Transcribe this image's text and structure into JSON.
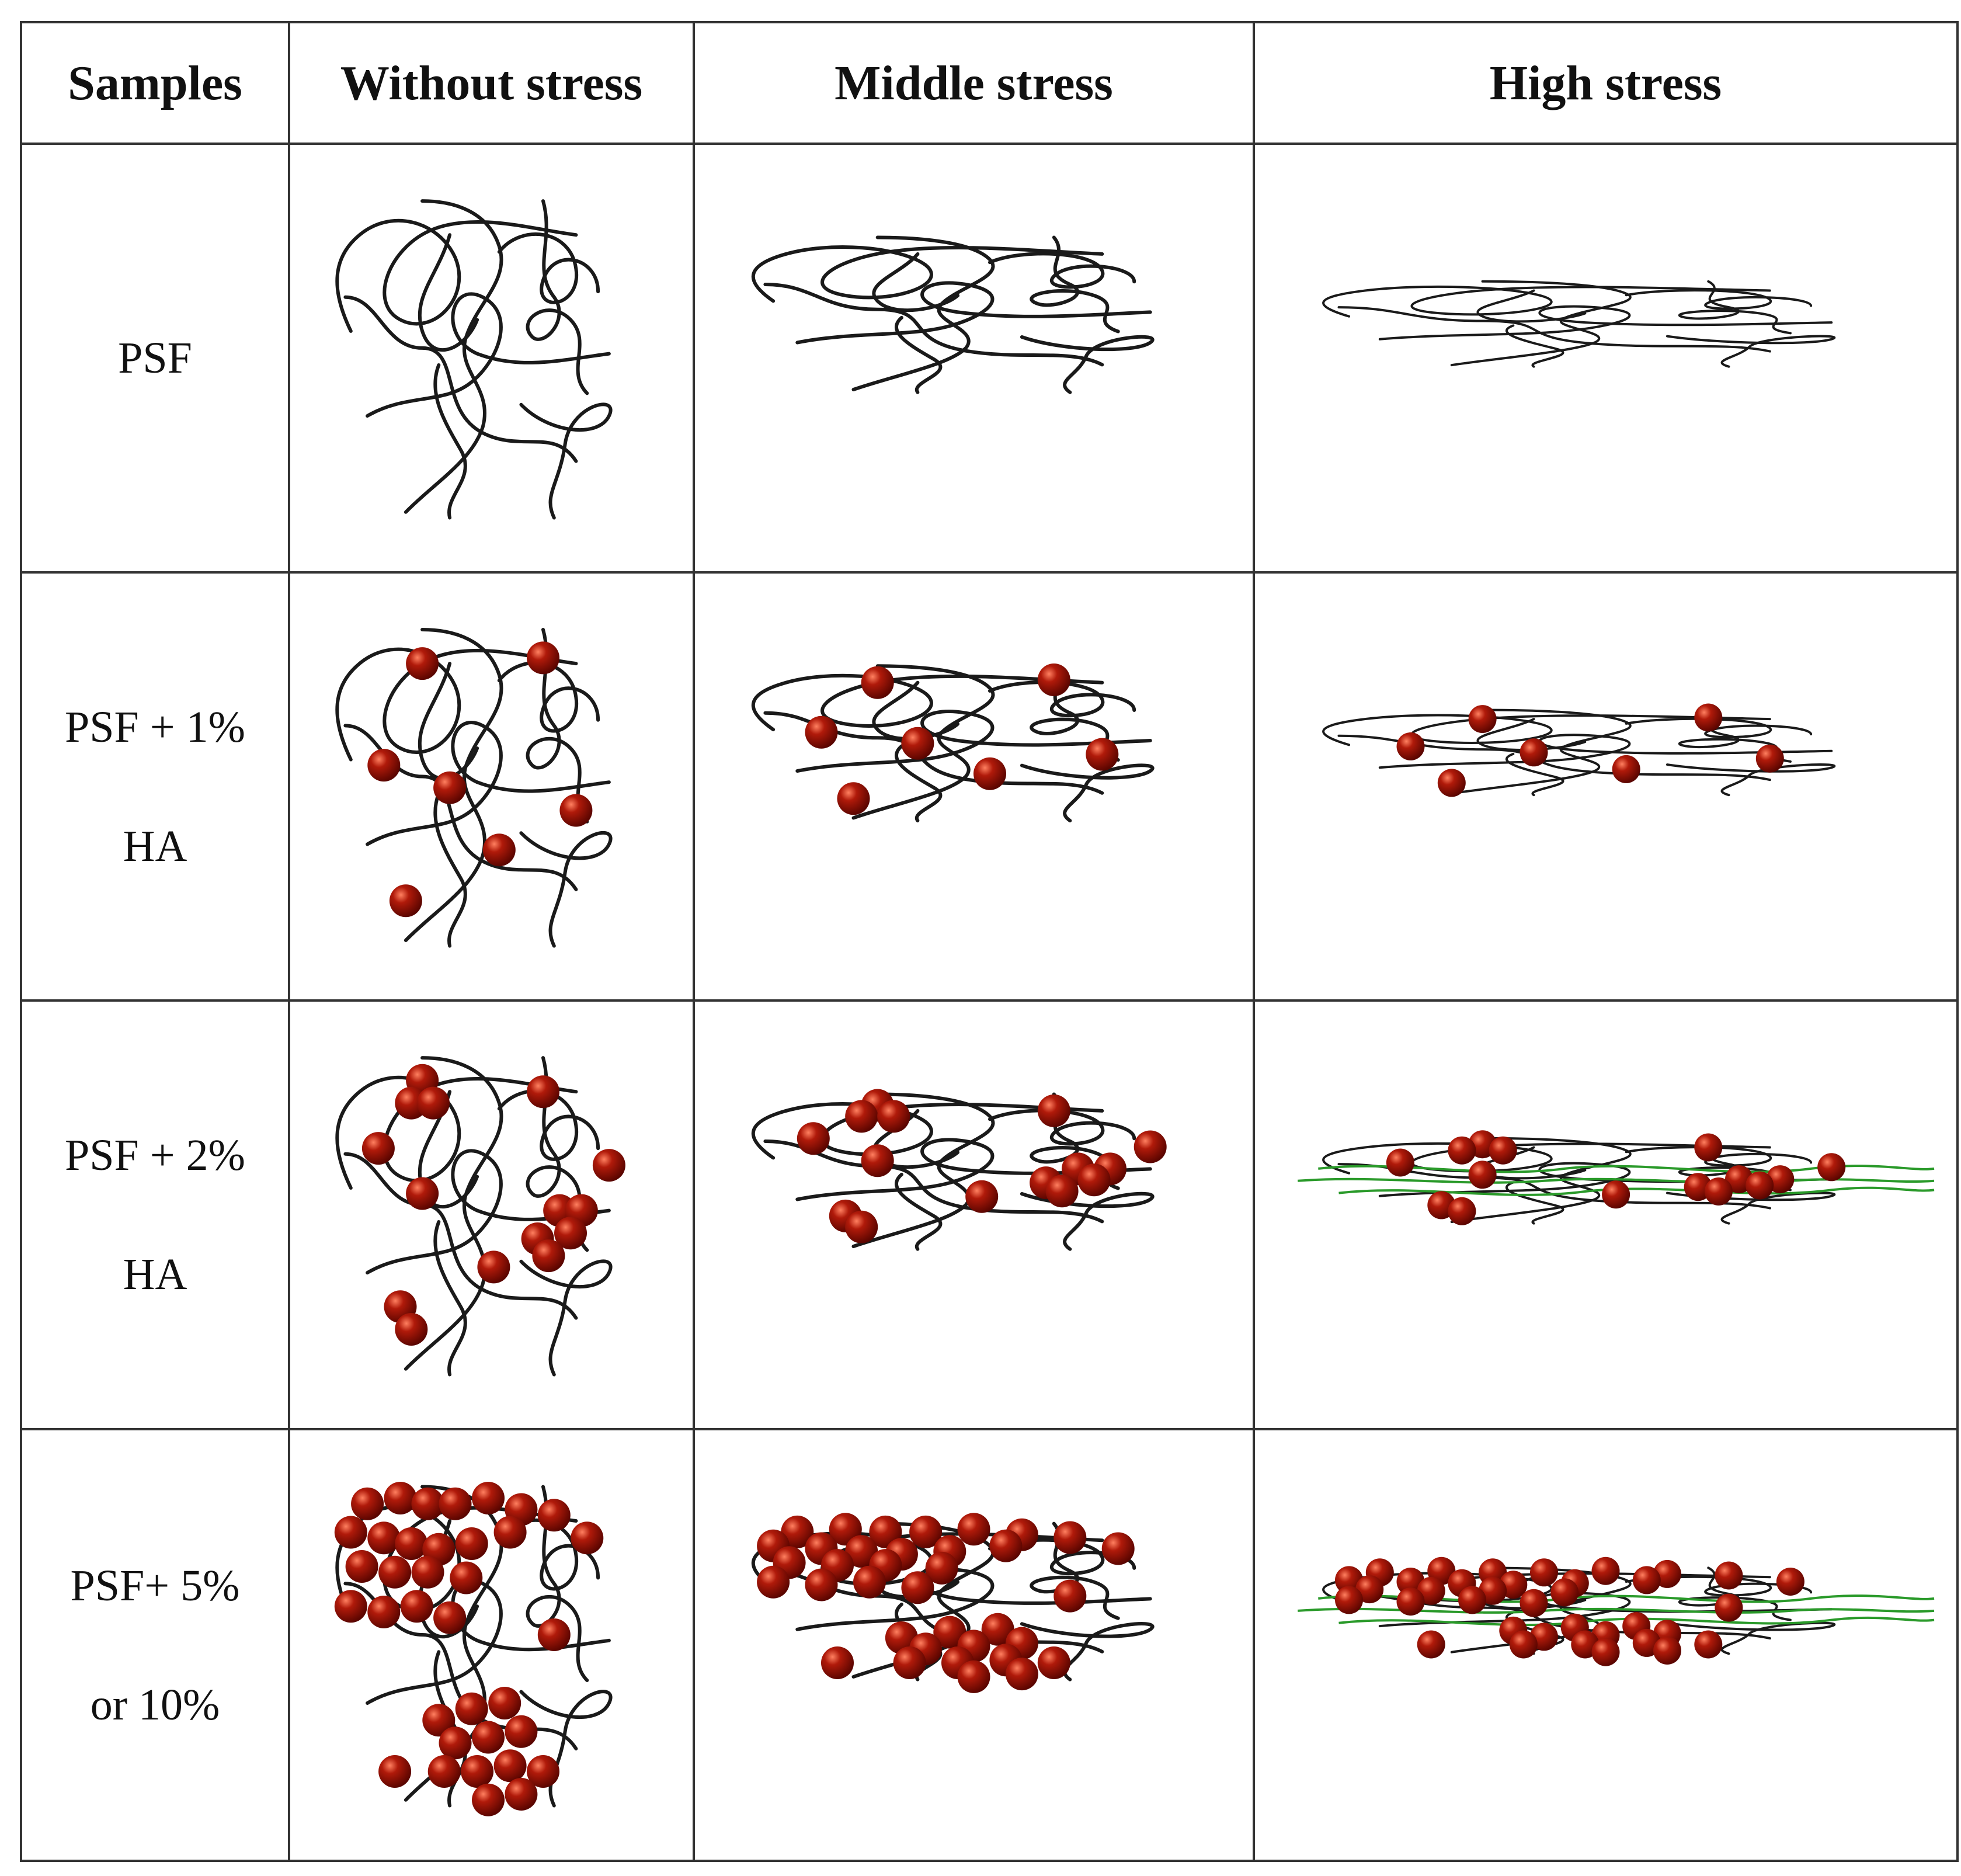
{
  "table": {
    "headers": [
      "Samples",
      "Without stress",
      "Middle stress",
      "High stress"
    ],
    "rows": [
      {
        "label_lines": [
          "PSF"
        ],
        "cells": [
          {
            "stress": "none",
            "particles": 0,
            "green_chains": false
          },
          {
            "stress": "middle",
            "particles": 0,
            "green_chains": false
          },
          {
            "stress": "high",
            "particles": 0,
            "green_chains": false
          }
        ]
      },
      {
        "label_lines": [
          "PSF + 1%",
          "HA"
        ],
        "cells": [
          {
            "stress": "none",
            "particles": 7,
            "green_chains": false
          },
          {
            "stress": "middle",
            "particles": 7,
            "green_chains": false
          },
          {
            "stress": "high",
            "particles": 7,
            "green_chains": false
          }
        ]
      },
      {
        "label_lines": [
          "PSF + 2%",
          "HA"
        ],
        "cells": [
          {
            "stress": "none",
            "particles": 15,
            "green_chains": false
          },
          {
            "stress": "middle",
            "particles": 15,
            "green_chains": false
          },
          {
            "stress": "high",
            "particles": 15,
            "green_chains": true
          }
        ]
      },
      {
        "label_lines": [
          "PSF+ 5%",
          "or 10%"
        ],
        "cells": [
          {
            "stress": "none",
            "particles": 36,
            "green_chains": false
          },
          {
            "stress": "middle",
            "particles": 36,
            "green_chains": false
          },
          {
            "stress": "high",
            "particles": 36,
            "green_chains": true
          }
        ]
      }
    ]
  },
  "colors": {
    "border": "#333333",
    "chain": "#1a1a1a",
    "particle": "#b01a0a",
    "particle_highlight": "#ff8060",
    "particle_shadow": "#5a0500",
    "green_chain": "#2a9a2a"
  }
}
